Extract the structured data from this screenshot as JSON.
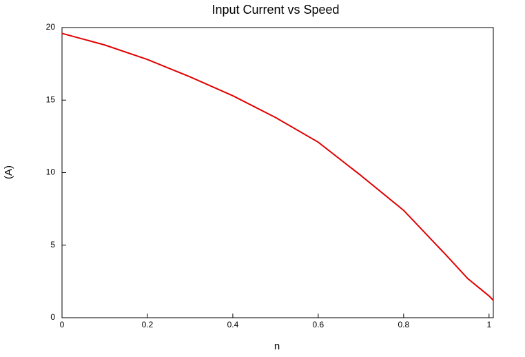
{
  "chart_data": {
    "type": "line",
    "title": "Input Current vs Speed",
    "x_label": "n",
    "y_label": "(A)",
    "x": [
      0,
      0.1,
      0.2,
      0.3,
      0.4,
      0.5,
      0.6,
      0.7,
      0.8,
      0.9,
      0.95,
      1.0,
      1.01
    ],
    "series": [
      {
        "name": "Input Current",
        "color": "#e00000",
        "values": [
          19.6,
          18.8,
          17.8,
          16.6,
          15.3,
          13.8,
          12.1,
          9.8,
          7.4,
          4.3,
          2.7,
          1.5,
          1.2
        ]
      }
    ],
    "xlim": [
      0,
      1.01
    ],
    "ylim": [
      0,
      20
    ],
    "xticks": [
      0,
      0.2,
      0.4,
      0.6,
      0.8,
      1
    ],
    "yticks": [
      0,
      5,
      10,
      15,
      20
    ]
  }
}
